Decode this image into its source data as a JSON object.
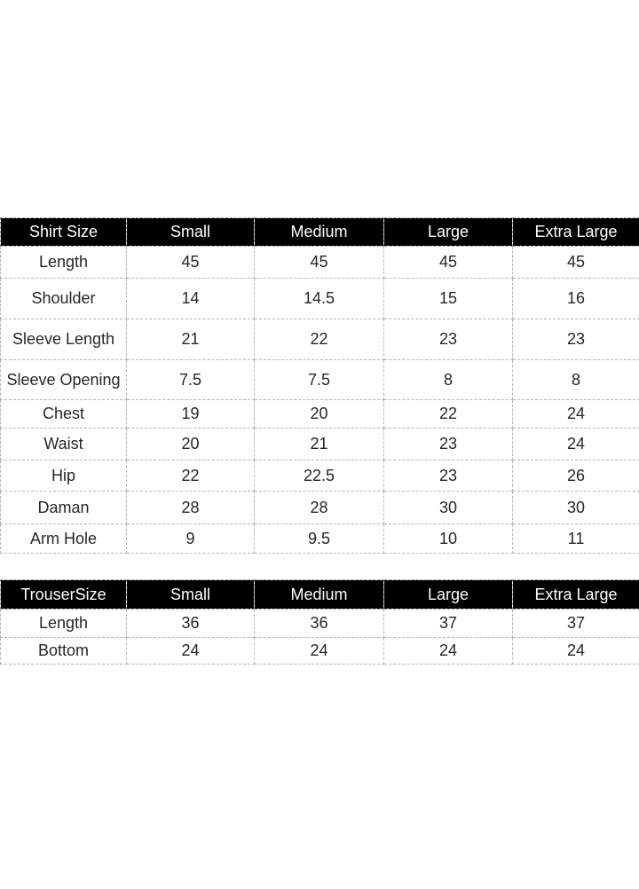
{
  "colors": {
    "background": "#ffffff",
    "header_bg": "#000000",
    "header_text": "#ffffff",
    "cell_text": "#262626",
    "grid_border": "#b3b3b3"
  },
  "tables": [
    {
      "id": "shirt-size-table",
      "header": [
        "Shirt Size",
        "Small",
        "Medium",
        "Large",
        "Extra Large"
      ],
      "rows": [
        {
          "label": "Length",
          "values": [
            "45",
            "45",
            "45",
            "45"
          ]
        },
        {
          "label": "Shoulder",
          "values": [
            "14",
            "14.5",
            "15",
            "16"
          ]
        },
        {
          "label": "Sleeve Length",
          "values": [
            "21",
            "22",
            "23",
            "23"
          ]
        },
        {
          "label": "Sleeve Opening",
          "values": [
            "7.5",
            "7.5",
            "8",
            "8"
          ]
        },
        {
          "label": "Chest",
          "values": [
            "19",
            "20",
            "22",
            "24"
          ]
        },
        {
          "label": "Waist",
          "values": [
            "20",
            "21",
            "23",
            "24"
          ]
        },
        {
          "label": "Hip",
          "values": [
            "22",
            "22.5",
            "23",
            "26"
          ]
        },
        {
          "label": "Daman",
          "values": [
            "28",
            "28",
            "30",
            "30"
          ]
        },
        {
          "label": "Arm Hole",
          "values": [
            "9",
            "9.5",
            "10",
            "11"
          ]
        }
      ]
    },
    {
      "id": "trouser-size-table",
      "header": [
        "TrouserSize",
        "Small",
        "Medium",
        "Large",
        "Extra Large"
      ],
      "rows": [
        {
          "label": "Length",
          "values": [
            "36",
            "36",
            "37",
            "37"
          ]
        },
        {
          "label": "Bottom",
          "values": [
            "24",
            "24",
            "24",
            "24"
          ]
        }
      ]
    }
  ]
}
